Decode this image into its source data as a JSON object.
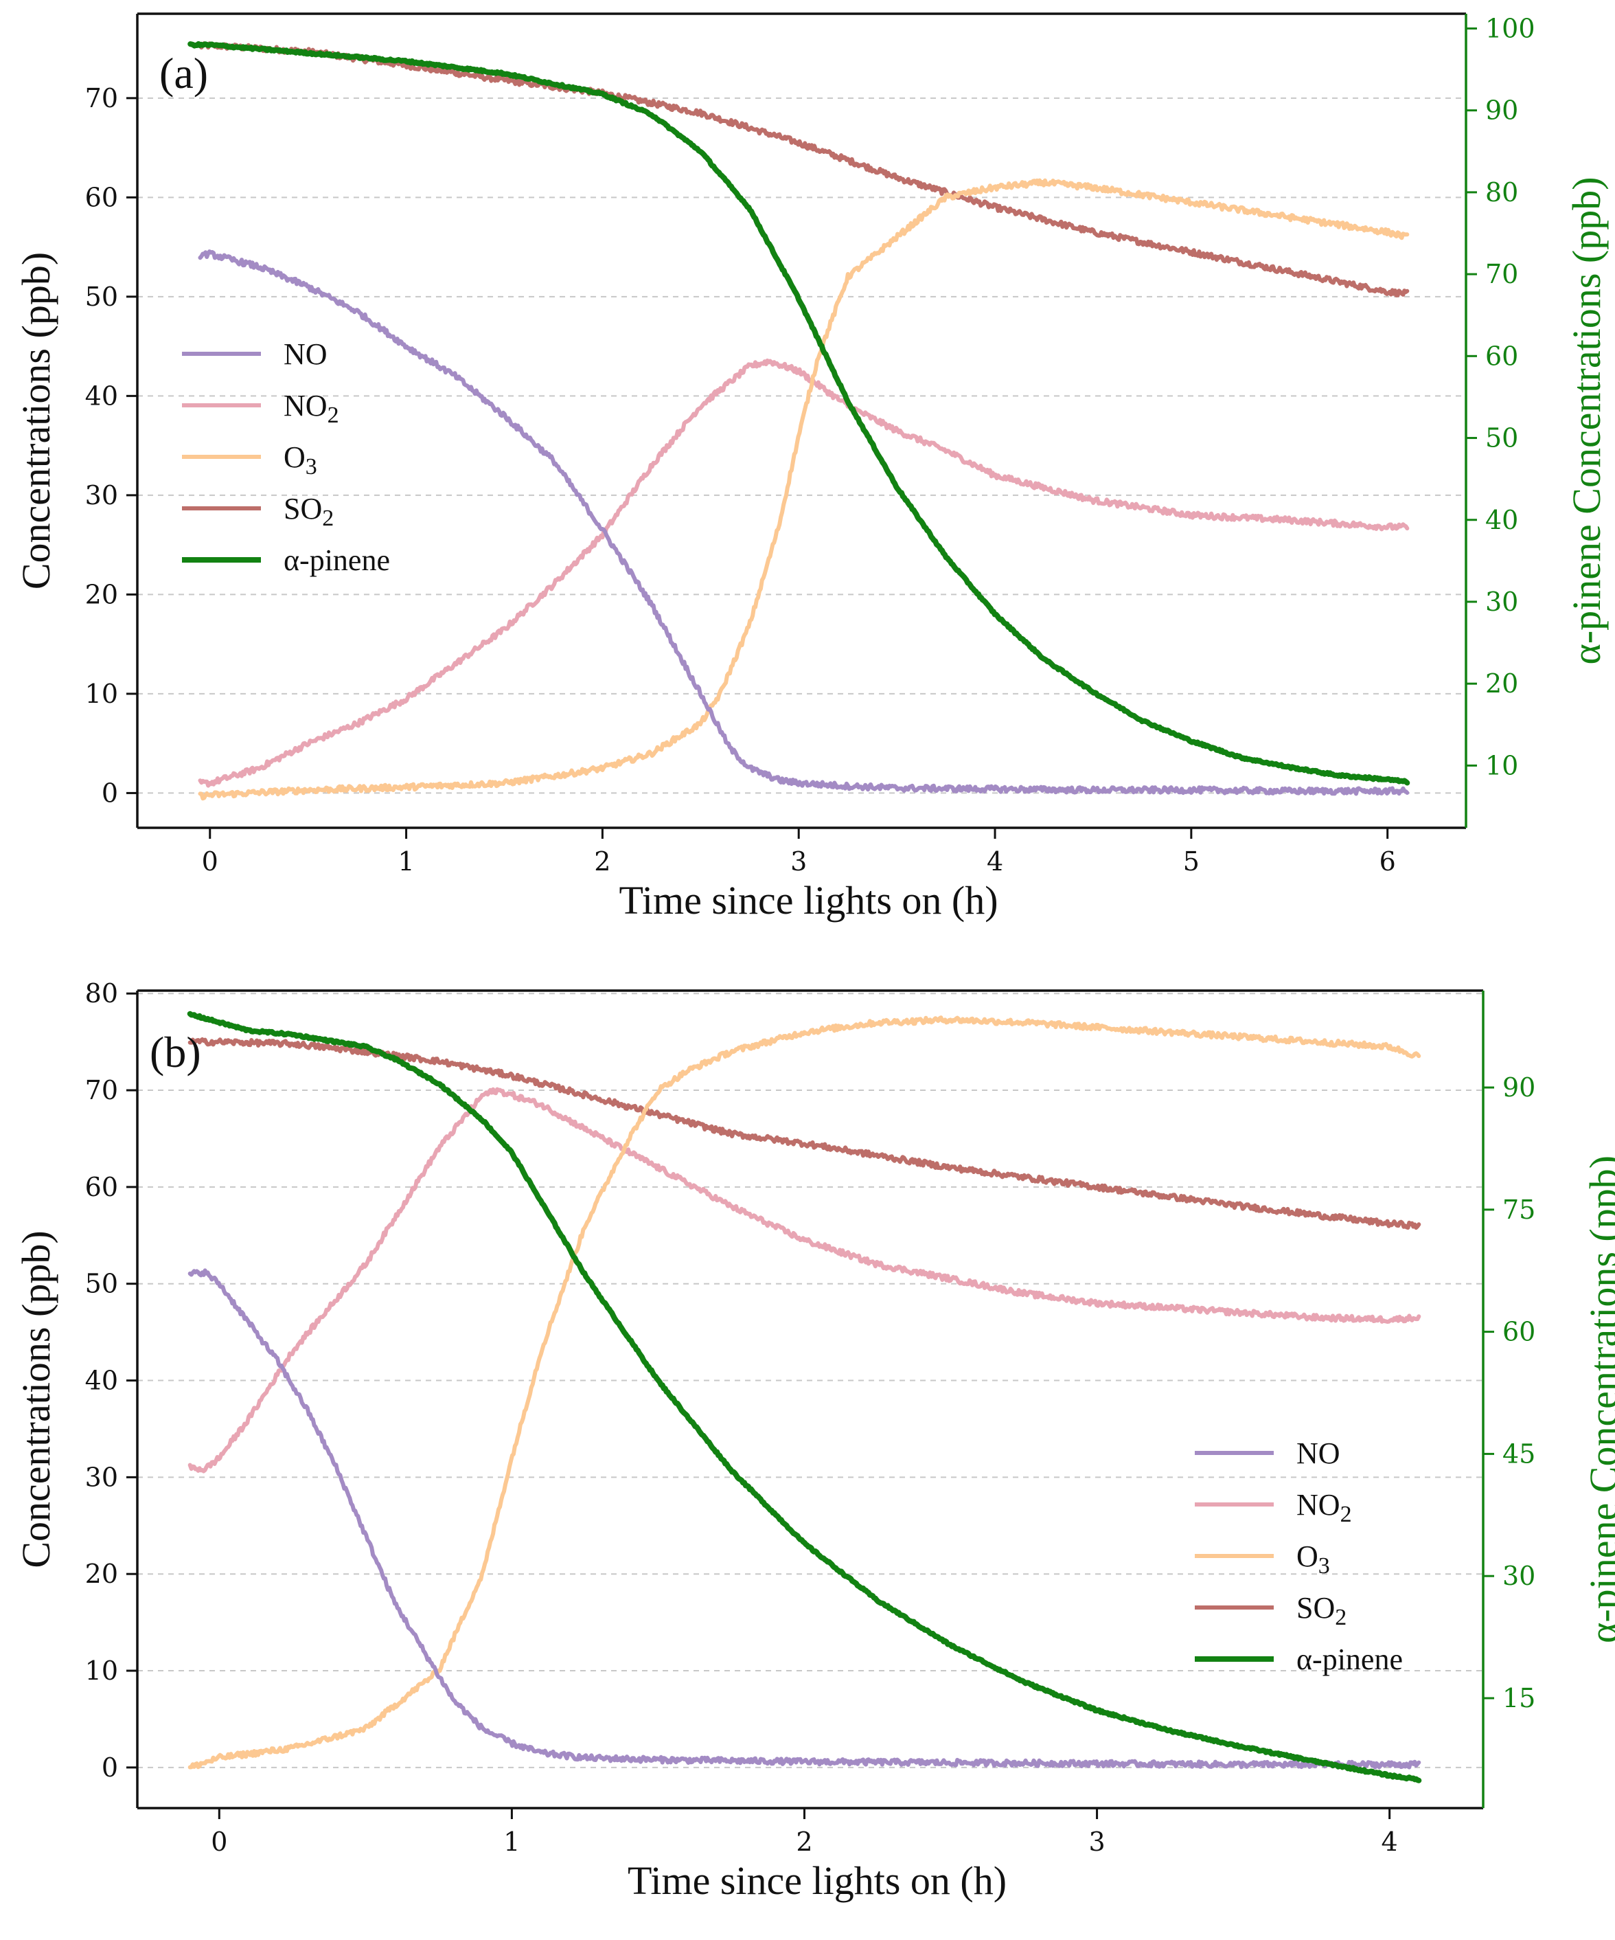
{
  "colors": {
    "NO": "#a38bc4",
    "NO2": "#e8a5b3",
    "O3": "#fcc892",
    "SO2": "#bd6e69",
    "a_pinene": "#128212",
    "right_axis": "#128212"
  },
  "chart_data": [
    {
      "type": "line",
      "panel_label": "(a)",
      "xlabel": "Time since lights on (h)",
      "ylabel": "Concentrations (ppb)",
      "ylabel_right": "α-pinene Concentrations (ppb)",
      "xlim": [
        -0.37,
        6.4
      ],
      "ylim": [
        -3.5,
        78.5
      ],
      "ylim_right": [
        2.4,
        101.8
      ],
      "xticks": [
        0,
        1,
        2,
        3,
        4,
        5,
        6
      ],
      "yticks": [
        0,
        10,
        20,
        30,
        40,
        50,
        60,
        70
      ],
      "yticks_right": [
        10,
        20,
        30,
        40,
        50,
        60,
        70,
        80,
        90,
        100
      ],
      "grid": "horizontal dashed",
      "legend_position": "center-left",
      "legend": [
        {
          "label": "NO",
          "base": "NO",
          "sub": ""
        },
        {
          "label": "NO2",
          "base": "NO",
          "sub": "2"
        },
        {
          "label": "O3",
          "base": "O",
          "sub": "3"
        },
        {
          "label": "SO2",
          "base": "SO",
          "sub": "2"
        },
        {
          "label": "α-pinene",
          "base": "α-pinene",
          "sub": ""
        }
      ],
      "series": [
        {
          "name": "NO",
          "axis": "left",
          "x": [
            -0.05,
            0,
            0.25,
            0.5,
            0.75,
            1,
            1.25,
            1.5,
            1.75,
            2,
            2.25,
            2.5,
            2.65,
            2.75,
            2.9,
            3,
            3.25,
            3.5,
            4,
            4.5,
            5,
            5.5,
            6,
            6.1
          ],
          "y": [
            54.2,
            54.3,
            53,
            51,
            48.5,
            45,
            42,
            38,
            33.5,
            26.5,
            19,
            10,
            4.5,
            2.5,
            1.3,
            1,
            0.7,
            0.5,
            0.4,
            0.3,
            0.3,
            0.2,
            0.2,
            0.2
          ]
        },
        {
          "name": "NO2",
          "axis": "left",
          "x": [
            -0.05,
            0,
            0.25,
            0.5,
            0.75,
            1,
            1.25,
            1.5,
            1.75,
            2,
            2.25,
            2.5,
            2.75,
            2.85,
            3,
            3.25,
            3.5,
            3.75,
            4,
            4.5,
            5,
            5.5,
            6,
            6.1
          ],
          "y": [
            1,
            1,
            2.5,
            5,
            7,
            9.5,
            13,
            16.5,
            21,
            26,
            33,
            39,
            43,
            43.5,
            42.5,
            39,
            36.5,
            34.5,
            32,
            29.5,
            28,
            27.5,
            26.8,
            26.8
          ]
        },
        {
          "name": "O3",
          "axis": "left",
          "x": [
            -0.05,
            0,
            0.5,
            1,
            1.5,
            1.75,
            2,
            2.25,
            2.5,
            2.6,
            2.75,
            2.9,
            3,
            3.1,
            3.25,
            3.5,
            3.75,
            4,
            4.25,
            4.5,
            5,
            5.5,
            6,
            6.1
          ],
          "y": [
            -0.3,
            -0.2,
            0.3,
            0.6,
            1,
            1.7,
            2.5,
            4,
            7,
            10,
            17,
            27,
            36,
            44,
            52,
            56,
            60,
            61,
            61.5,
            61,
            59.5,
            58,
            56.5,
            56
          ]
        },
        {
          "name": "SO2",
          "axis": "left",
          "x": [
            -0.05,
            0,
            0.25,
            0.5,
            1,
            1.5,
            2,
            2.5,
            3,
            3.5,
            4,
            4.5,
            5,
            5.5,
            6,
            6.1
          ],
          "y": [
            75.2,
            75.3,
            75,
            74.7,
            73.3,
            71.8,
            70.5,
            68.5,
            65.5,
            62,
            59,
            56.5,
            54.5,
            52.5,
            50.5,
            50.3
          ]
        },
        {
          "name": "α-pinene",
          "axis": "right",
          "x": [
            -0.1,
            0,
            0.25,
            0.5,
            1,
            1.5,
            2,
            2.25,
            2.5,
            2.75,
            3,
            3.25,
            3.5,
            3.75,
            4,
            4.25,
            4.5,
            4.75,
            5,
            5.25,
            5.5,
            5.75,
            6,
            6.1
          ],
          "y": [
            98,
            98,
            97.5,
            97,
            96,
            94.5,
            92,
            89.5,
            85,
            78,
            67,
            54.5,
            44,
            35.5,
            28.5,
            23,
            19,
            15.5,
            13,
            11,
            9.8,
            8.8,
            8.3,
            8
          ]
        }
      ]
    },
    {
      "type": "line",
      "panel_label": "(b)",
      "xlabel": "Time since lights on (h)",
      "ylabel": "Concentrations (ppb)",
      "ylabel_right": "α-pinene Concentrations (ppb)",
      "xlim": [
        -0.28,
        4.32
      ],
      "ylim": [
        -4.2,
        80.3
      ],
      "ylim_right": [
        1.5,
        101.9
      ],
      "xticks": [
        0,
        1,
        2,
        3,
        4
      ],
      "yticks": [
        0,
        10,
        20,
        30,
        40,
        50,
        60,
        70,
        80
      ],
      "yticks_right": [
        15,
        30,
        45,
        60,
        75,
        90
      ],
      "grid": "horizontal dashed",
      "legend_position": "bottom-right",
      "legend": [
        {
          "label": "NO",
          "base": "NO",
          "sub": ""
        },
        {
          "label": "NO2",
          "base": "NO",
          "sub": "2"
        },
        {
          "label": "O3",
          "base": "O",
          "sub": "3"
        },
        {
          "label": "SO2",
          "base": "SO",
          "sub": "2"
        },
        {
          "label": "α-pinene",
          "base": "α-pinene",
          "sub": ""
        }
      ],
      "series": [
        {
          "name": "NO",
          "axis": "left",
          "x": [
            -0.1,
            -0.05,
            0,
            0.1,
            0.2,
            0.3,
            0.4,
            0.5,
            0.6,
            0.7,
            0.8,
            0.9,
            1,
            1.1,
            1.25,
            1.5,
            2,
            2.5,
            3,
            3.5,
            4,
            4.1
          ],
          "y": [
            51,
            51.2,
            50,
            46,
            42,
            37,
            31,
            24,
            17,
            12,
            7,
            4,
            2.5,
            1.5,
            1,
            0.8,
            0.6,
            0.5,
            0.4,
            0.3,
            0.3,
            0.3
          ]
        },
        {
          "name": "NO2",
          "axis": "left",
          "x": [
            -0.1,
            -0.05,
            0,
            0.1,
            0.25,
            0.5,
            0.75,
            0.9,
            0.95,
            1,
            1.1,
            1.25,
            1.5,
            1.75,
            2,
            2.25,
            2.5,
            2.75,
            3,
            3.25,
            3.5,
            3.75,
            4,
            4.1
          ],
          "y": [
            31,
            30.8,
            32,
            36,
            43,
            52,
            64,
            69.5,
            70,
            69.5,
            68.5,
            66,
            62,
            58,
            54.5,
            52,
            50.5,
            49,
            48,
            47.5,
            47,
            46.5,
            46.3,
            46.5
          ]
        },
        {
          "name": "O3",
          "axis": "left",
          "x": [
            -0.1,
            0,
            0.25,
            0.5,
            0.75,
            0.9,
            1,
            1.1,
            1.25,
            1.4,
            1.5,
            1.6,
            1.75,
            2,
            2.25,
            2.5,
            2.75,
            3,
            3.25,
            3.5,
            3.75,
            4,
            4.1
          ],
          "y": [
            0,
            1,
            2,
            4,
            10,
            20,
            32,
            43,
            56,
            65,
            70,
            72,
            74,
            76,
            77,
            77.3,
            77,
            76.5,
            76,
            75.5,
            75,
            74.5,
            73.5
          ]
        },
        {
          "name": "SO2",
          "axis": "left",
          "x": [
            -0.1,
            0,
            0.25,
            0.5,
            0.75,
            1,
            1.25,
            1.5,
            1.75,
            2,
            2.5,
            3,
            3.5,
            4,
            4.1
          ],
          "y": [
            75,
            75,
            74.8,
            74,
            73,
            71.5,
            69.5,
            67.5,
            65.5,
            64.5,
            62,
            60,
            58,
            56.2,
            56
          ]
        },
        {
          "name": "α-pinene",
          "axis": "right",
          "x": [
            -0.1,
            0,
            0.1,
            0.25,
            0.5,
            0.6,
            0.75,
            0.9,
            1,
            1.1,
            1.25,
            1.5,
            1.75,
            2,
            2.25,
            2.5,
            2.75,
            3,
            3.25,
            3.5,
            3.75,
            4,
            4.1
          ],
          "y": [
            99,
            98,
            97,
            96.5,
            95,
            93.5,
            90.5,
            86,
            82,
            76,
            67,
            54,
            43,
            34,
            27,
            21.5,
            17,
            13.5,
            11,
            9,
            7.2,
            5.5,
            5
          ]
        }
      ]
    }
  ]
}
